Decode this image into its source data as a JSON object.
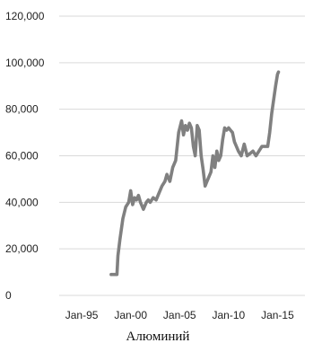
{
  "chart_data": {
    "type": "line",
    "title": "",
    "caption": "Алюминий",
    "xlabel": "",
    "ylabel": "",
    "y_ticks": [
      "0",
      "20,000",
      "40,000",
      "60,000",
      "80,000",
      "100,000",
      "120,000"
    ],
    "y_tick_values": [
      0,
      20000,
      40000,
      60000,
      80000,
      100000,
      120000
    ],
    "ylim": [
      0,
      120000
    ],
    "x_ticks": [
      "Jan-95",
      "Jan-00",
      "Jan-05",
      "Jan-10",
      "Jan-15"
    ],
    "x_tick_values": [
      1995,
      2000,
      2005,
      2010,
      2015
    ],
    "xlim": [
      1992.7,
      2017.8
    ],
    "grid": true,
    "legend": "none",
    "series": [
      {
        "color": "#808080",
        "x": [
          1998.0,
          1998.6,
          1998.7,
          1998.9,
          1999.1,
          1999.2,
          1999.5,
          1999.8,
          2000.0,
          2000.2,
          2000.4,
          2000.6,
          2000.8,
          2001.0,
          2001.3,
          2001.6,
          2001.8,
          2002.0,
          2002.3,
          2002.6,
          2002.9,
          2003.2,
          2003.5,
          2003.7,
          2004.0,
          2004.3,
          2004.6,
          2004.9,
          2005.2,
          2005.4,
          2005.6,
          2005.8,
          2006.0,
          2006.2,
          2006.4,
          2006.6,
          2006.8,
          2007.0,
          2007.2,
          2007.4,
          2007.6,
          2007.8,
          2008.0,
          2008.2,
          2008.4,
          2008.6,
          2008.8,
          2009.0,
          2009.2,
          2009.4,
          2009.6,
          2009.8,
          2010.0,
          2010.2,
          2010.4,
          2010.6,
          2010.8,
          2011.0,
          2011.3,
          2011.6,
          2011.9,
          2012.2,
          2012.5,
          2012.8,
          2013.1,
          2013.4,
          2013.7,
          2014.0,
          2014.2,
          2014.4,
          2014.6,
          2014.8,
          2015.0,
          2015.1
        ],
        "y": [
          9000,
          9000,
          17000,
          24000,
          30000,
          33000,
          38000,
          40000,
          45000,
          39000,
          42000,
          41000,
          43000,
          40000,
          37000,
          40000,
          41000,
          40000,
          42000,
          41000,
          44000,
          47000,
          49000,
          52000,
          49000,
          55000,
          58000,
          70000,
          75000,
          69000,
          73000,
          71000,
          74000,
          72000,
          64000,
          60000,
          73000,
          71000,
          60000,
          54000,
          47000,
          49000,
          51000,
          53000,
          60000,
          55000,
          62000,
          58000,
          60000,
          67000,
          72000,
          71000,
          72000,
          71000,
          70000,
          66000,
          64000,
          62000,
          60000,
          65000,
          60000,
          61000,
          62000,
          60000,
          62000,
          64000,
          64000,
          64000,
          70000,
          78000,
          84000,
          90000,
          95000,
          96000
        ]
      }
    ]
  }
}
